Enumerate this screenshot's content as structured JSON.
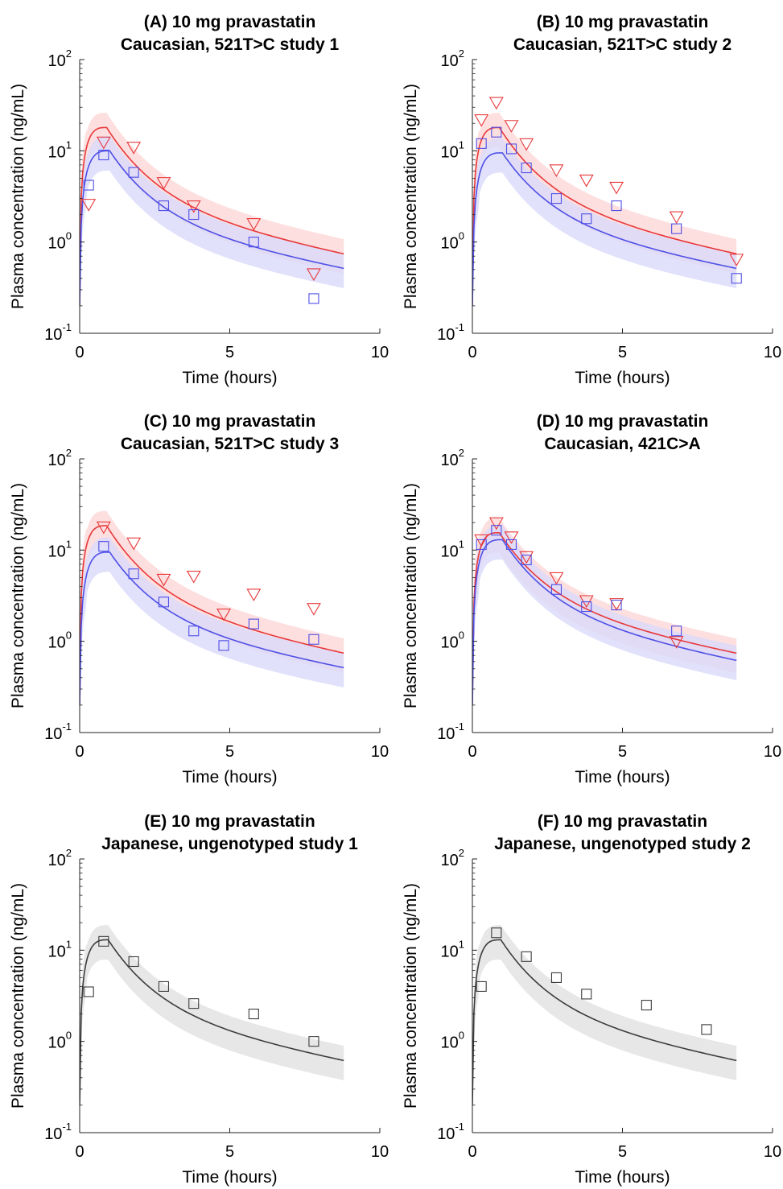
{
  "panels": [
    {
      "title_line1": "(A) 10 mg pravastatin",
      "title_line2": "Caucasian, 521T>C study 1",
      "chart_data": {
        "type": "line",
        "xlabel": "Time (hours)",
        "ylabel": "Plasma concentration (ng/mL)",
        "xlim": [
          0,
          10
        ],
        "ylim": [
          0.1,
          100
        ],
        "yscale": "log",
        "xticks": [
          "0",
          "5",
          "10"
        ],
        "yticks": [
          {
            "base": "10",
            "exp": "-1"
          },
          {
            "base": "10",
            "exp": "0"
          },
          {
            "base": "10",
            "exp": "1"
          },
          {
            "base": "10",
            "exp": "2"
          }
        ],
        "grid": false,
        "series": [
          {
            "color": "#e8383a",
            "band": "#fdd7d7",
            "marker": "triangle-down",
            "model": {
              "cmax": 18,
              "tmax": 0.9,
              "c_end": 0.72
            },
            "observed": {
              "x": [
                0.3,
                0.8,
                1.8,
                2.8,
                3.8,
                5.8,
                7.8
              ],
              "y": [
                2.6,
                12.5,
                11.0,
                4.5,
                2.5,
                1.6,
                0.45
              ]
            }
          },
          {
            "color": "#4f4fe6",
            "band": "#d9d9fb",
            "marker": "square",
            "model": {
              "cmax": 10,
              "tmax": 1.0,
              "c_end": 0.5
            },
            "observed": {
              "x": [
                0.3,
                0.8,
                1.8,
                2.8,
                3.8,
                5.8,
                7.8
              ],
              "y": [
                4.2,
                9.0,
                5.8,
                2.5,
                2.0,
                1.0,
                0.24
              ]
            }
          }
        ]
      }
    },
    {
      "title_line1": "(B) 10 mg pravastatin",
      "title_line2": "Caucasian, 521T>C study 2",
      "chart_data": {
        "type": "line",
        "xlabel": "Time (hours)",
        "ylabel": "Plasma concentration (ng/mL)",
        "xlim": [
          0,
          10
        ],
        "ylim": [
          0.1,
          100
        ],
        "yscale": "log",
        "xticks": [
          "0",
          "5",
          "10"
        ],
        "yticks": [
          {
            "base": "10",
            "exp": "-1"
          },
          {
            "base": "10",
            "exp": "0"
          },
          {
            "base": "10",
            "exp": "1"
          },
          {
            "base": "10",
            "exp": "2"
          }
        ],
        "grid": false,
        "series": [
          {
            "color": "#e8383a",
            "band": "#fdd7d7",
            "marker": "triangle-down",
            "model": {
              "cmax": 18,
              "tmax": 0.9,
              "c_end": 0.72
            },
            "observed": {
              "x": [
                0.3,
                0.8,
                1.3,
                1.8,
                2.8,
                3.8,
                4.8,
                6.8,
                8.8
              ],
              "y": [
                22,
                34,
                19,
                12,
                6.2,
                4.8,
                4.0,
                1.9,
                0.65
              ]
            }
          },
          {
            "color": "#4f4fe6",
            "band": "#d9d9fb",
            "marker": "square",
            "model": {
              "cmax": 9.5,
              "tmax": 1.0,
              "c_end": 0.5
            },
            "observed": {
              "x": [
                0.3,
                0.8,
                1.3,
                1.8,
                2.8,
                3.8,
                4.8,
                6.8,
                8.8
              ],
              "y": [
                12,
                16,
                10.5,
                6.5,
                3.0,
                1.8,
                2.5,
                1.4,
                0.4
              ]
            }
          }
        ]
      }
    },
    {
      "title_line1": "(C) 10 mg pravastatin",
      "title_line2": "Caucasian, 521T>C study 3",
      "chart_data": {
        "type": "line",
        "xlabel": "Time (hours)",
        "ylabel": "Plasma concentration (ng/mL)",
        "xlim": [
          0,
          10
        ],
        "ylim": [
          0.1,
          100
        ],
        "yscale": "log",
        "xticks": [
          "0",
          "5",
          "10"
        ],
        "yticks": [
          {
            "base": "10",
            "exp": "-1"
          },
          {
            "base": "10",
            "exp": "0"
          },
          {
            "base": "10",
            "exp": "1"
          },
          {
            "base": "10",
            "exp": "2"
          }
        ],
        "grid": false,
        "series": [
          {
            "color": "#e8383a",
            "band": "#fdd7d7",
            "marker": "triangle-down",
            "model": {
              "cmax": 18.5,
              "tmax": 0.9,
              "c_end": 0.72
            },
            "observed": {
              "x": [
                0.8,
                1.8,
                2.8,
                3.8,
                4.8,
                5.8,
                7.8
              ],
              "y": [
                18,
                12,
                4.8,
                5.2,
                2.0,
                3.3,
                2.3
              ]
            }
          },
          {
            "color": "#4f4fe6",
            "band": "#d9d9fb",
            "marker": "square",
            "model": {
              "cmax": 9.5,
              "tmax": 1.0,
              "c_end": 0.5
            },
            "observed": {
              "x": [
                0.8,
                1.8,
                2.8,
                3.8,
                4.8,
                5.8,
                7.8
              ],
              "y": [
                11,
                5.5,
                2.7,
                1.3,
                0.9,
                1.55,
                1.05
              ]
            }
          }
        ]
      }
    },
    {
      "title_line1": "(D) 10 mg pravastatin",
      "title_line2": "Caucasian, 421C>A",
      "chart_data": {
        "type": "line",
        "xlabel": "Time (hours)",
        "ylabel": "Plasma concentration (ng/mL)",
        "xlim": [
          0,
          10
        ],
        "ylim": [
          0.1,
          100
        ],
        "yscale": "log",
        "xticks": [
          "0",
          "5",
          "10"
        ],
        "yticks": [
          {
            "base": "10",
            "exp": "-1"
          },
          {
            "base": "10",
            "exp": "0"
          },
          {
            "base": "10",
            "exp": "1"
          },
          {
            "base": "10",
            "exp": "2"
          }
        ],
        "grid": false,
        "series": [
          {
            "color": "#e8383a",
            "band": "#fdd7d7",
            "marker": "triangle-down",
            "model": {
              "cmax": 15.5,
              "tmax": 0.9,
              "c_end": 0.72
            },
            "observed": {
              "x": [
                0.3,
                0.8,
                1.3,
                1.8,
                2.8,
                3.8,
                4.8,
                6.8
              ],
              "y": [
                13,
                20,
                14,
                8.5,
                5.0,
                2.8,
                2.6,
                1.0
              ]
            }
          },
          {
            "color": "#4f4fe6",
            "band": "#d9d9fb",
            "marker": "square",
            "model": {
              "cmax": 13,
              "tmax": 1.0,
              "c_end": 0.6
            },
            "observed": {
              "x": [
                0.3,
                0.8,
                1.3,
                1.8,
                2.8,
                3.8,
                4.8,
                6.8
              ],
              "y": [
                11.5,
                16.5,
                11.5,
                7.8,
                3.7,
                2.4,
                2.5,
                1.3
              ]
            }
          }
        ]
      }
    },
    {
      "title_line1": "(E) 10 mg pravastatin",
      "title_line2": "Japanese, ungenotyped study 1",
      "chart_data": {
        "type": "line",
        "xlabel": "Time (hours)",
        "ylabel": "Plasma concentration (ng/mL)",
        "xlim": [
          0,
          10
        ],
        "ylim": [
          0.1,
          100
        ],
        "yscale": "log",
        "xticks": [
          "0",
          "5",
          "10"
        ],
        "yticks": [
          {
            "base": "10",
            "exp": "-1"
          },
          {
            "base": "10",
            "exp": "0"
          },
          {
            "base": "10",
            "exp": "1"
          },
          {
            "base": "10",
            "exp": "2"
          }
        ],
        "grid": false,
        "series": [
          {
            "color": "#3c3c3c",
            "band": "#e1e1e1",
            "marker": "square",
            "model": {
              "cmax": 13,
              "tmax": 0.95,
              "c_end": 0.6
            },
            "observed": {
              "x": [
                0.3,
                0.8,
                1.8,
                2.8,
                3.8,
                5.8,
                7.8
              ],
              "y": [
                3.5,
                12.5,
                7.5,
                4.0,
                2.6,
                2.0,
                1.0
              ]
            }
          }
        ]
      }
    },
    {
      "title_line1": "(F) 10 mg pravastatin",
      "title_line2": "Japanese, ungenotyped study 2",
      "chart_data": {
        "type": "line",
        "xlabel": "Time (hours)",
        "ylabel": "Plasma concentration (ng/mL)",
        "xlim": [
          0,
          10
        ],
        "ylim": [
          0.1,
          100
        ],
        "yscale": "log",
        "xticks": [
          "0",
          "5",
          "10"
        ],
        "yticks": [
          {
            "base": "10",
            "exp": "-1"
          },
          {
            "base": "10",
            "exp": "0"
          },
          {
            "base": "10",
            "exp": "1"
          },
          {
            "base": "10",
            "exp": "2"
          }
        ],
        "grid": false,
        "series": [
          {
            "color": "#3c3c3c",
            "band": "#e1e1e1",
            "marker": "square",
            "model": {
              "cmax": 13,
              "tmax": 0.95,
              "c_end": 0.6
            },
            "observed": {
              "x": [
                0.3,
                0.8,
                1.8,
                2.8,
                3.8,
                5.8,
                7.8
              ],
              "y": [
                4.0,
                15.5,
                8.5,
                5.0,
                3.3,
                2.5,
                1.35
              ]
            }
          }
        ]
      }
    }
  ]
}
